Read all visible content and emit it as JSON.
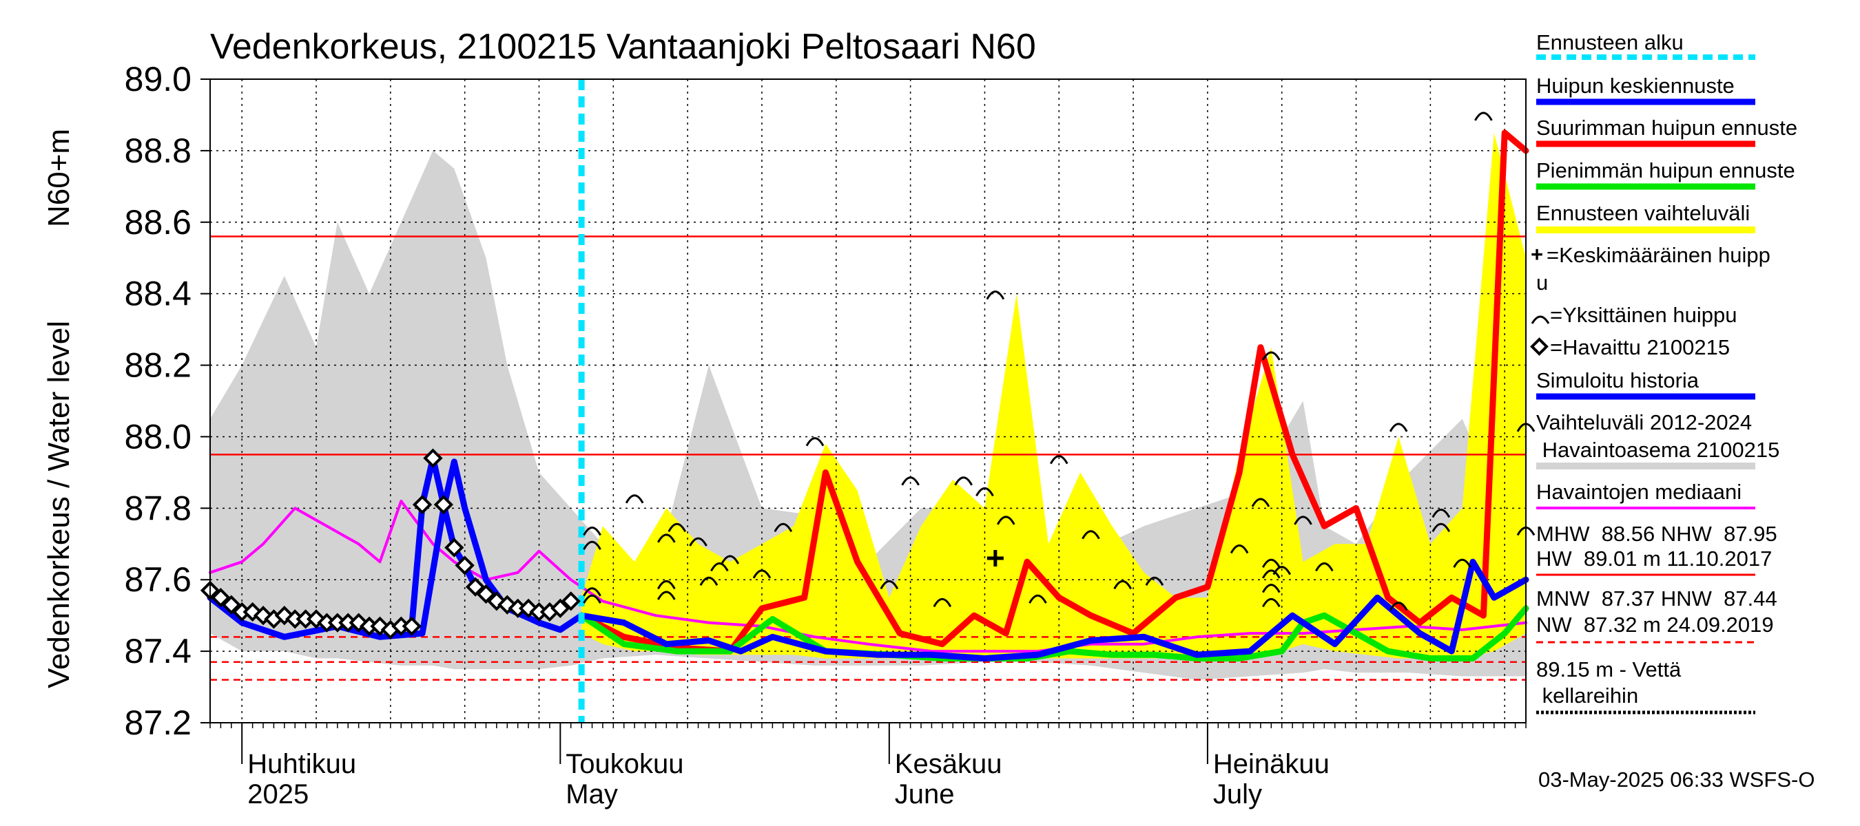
{
  "title": "Vedenkorkeus, 2100215 Vantaanjoki Peltosaari N60",
  "y_label_top": "N60+m",
  "y_label": "Vedenkorkeus / Water level",
  "footer": "03-May-2025 06:33 WSFS-O",
  "months": [
    {
      "fi": "Huhtikuu",
      "en": "2025",
      "date": "2025-04-01"
    },
    {
      "fi": "Toukokuu",
      "en": "May",
      "date": "2025-05-01"
    },
    {
      "fi": "Kesäkuu",
      "en": "June",
      "date": "2025-06-01"
    },
    {
      "fi": "Heinäkuu",
      "en": "July",
      "date": "2025-07-01"
    }
  ],
  "legend": {
    "forecast_start": "Ennusteen alku",
    "peak_mean": "Huipun keskiennuste",
    "peak_max": "Suurimman huipun ennuste",
    "peak_min": "Pienimmän huipun ennuste",
    "range": "Ennusteen vaihteluväli",
    "mean_peak_1": "=Keskimääräinen huipp",
    "mean_peak_2": "u",
    "single_peak": "=Yksittäinen huippu",
    "observed": "=Havaittu 2100215",
    "sim_history": "Simuloitu historia",
    "hist_range_1": "Vaihteluväli 2012-2024",
    "hist_range_2": " Havaintoasema 2100215",
    "median": "Havaintojen mediaani",
    "stats_1": "MHW  88.56 NHW  87.95",
    "stats_2": "HW  89.01 m 11.10.2017",
    "stats_3": "MNW  87.37 HNW  87.44",
    "stats_4": "NW  87.32 m 24.09.2019",
    "cellar_1": "89.15 m - Vettä",
    "cellar_2": " kellareihin"
  },
  "colors": {
    "forecast_start": "#00e5ff",
    "peak_mean": "#0000ff",
    "peak_max": "#ff0000",
    "peak_min": "#00e600",
    "range": "#ffff00",
    "hist_range": "#d3d3d3",
    "median": "#ff00ff",
    "observed": "#000000"
  },
  "chart_data": {
    "type": "line",
    "x_start": "2025-03-29",
    "x_end": "2025-07-31",
    "ylim": [
      87.2,
      89.0
    ],
    "yticks": [
      87.2,
      87.4,
      87.6,
      87.8,
      88.0,
      88.2,
      88.4,
      88.6,
      88.8,
      89.0
    ],
    "grid": true,
    "forecast_start": "2025-05-03",
    "ref_lines_solid": [
      88.56,
      87.95
    ],
    "ref_lines_dashed": [
      87.44,
      87.37,
      87.32
    ],
    "hist_range": {
      "x": [
        "2025-03-29",
        "2025-04-01",
        "2025-04-05",
        "2025-04-08",
        "2025-04-10",
        "2025-04-13",
        "2025-04-16",
        "2025-04-19",
        "2025-04-21",
        "2025-04-24",
        "2025-04-26",
        "2025-04-29",
        "2025-05-02",
        "2025-05-05",
        "2025-05-10",
        "2025-05-15",
        "2025-05-20",
        "2025-05-25",
        "2025-05-30",
        "2025-06-04",
        "2025-06-10",
        "2025-06-15",
        "2025-06-20",
        "2025-06-25",
        "2025-06-30",
        "2025-07-05",
        "2025-07-10",
        "2025-07-12",
        "2025-07-15",
        "2025-07-20",
        "2025-07-25",
        "2025-07-31"
      ],
      "lower": [
        87.45,
        87.4,
        87.4,
        87.38,
        87.38,
        87.37,
        87.36,
        87.36,
        87.35,
        87.35,
        87.35,
        87.35,
        87.36,
        87.38,
        87.39,
        87.38,
        87.37,
        87.36,
        87.36,
        87.36,
        87.37,
        87.37,
        87.36,
        87.34,
        87.32,
        87.33,
        87.34,
        87.35,
        87.34,
        87.34,
        87.33,
        87.33
      ],
      "upper": [
        88.05,
        88.2,
        88.45,
        88.25,
        88.6,
        88.4,
        88.6,
        88.8,
        88.75,
        88.5,
        88.2,
        87.9,
        87.8,
        87.7,
        87.62,
        88.2,
        87.8,
        87.78,
        87.65,
        87.8,
        87.8,
        87.7,
        87.68,
        87.75,
        87.8,
        87.85,
        88.1,
        87.75,
        87.7,
        87.9,
        88.05,
        87.65
      ]
    },
    "forecast_range": {
      "x": [
        "2025-05-03",
        "2025-05-05",
        "2025-05-08",
        "2025-05-11",
        "2025-05-14",
        "2025-05-17",
        "2025-05-20",
        "2025-05-23",
        "2025-05-26",
        "2025-05-29",
        "2025-06-01",
        "2025-06-04",
        "2025-06-07",
        "2025-06-10",
        "2025-06-13",
        "2025-06-16",
        "2025-06-19",
        "2025-06-22",
        "2025-06-25",
        "2025-06-28",
        "2025-07-01",
        "2025-07-04",
        "2025-07-07",
        "2025-07-10",
        "2025-07-13",
        "2025-07-16",
        "2025-07-19",
        "2025-07-22",
        "2025-07-25",
        "2025-07-28",
        "2025-07-31"
      ],
      "lower": [
        87.45,
        87.42,
        87.4,
        87.4,
        87.39,
        87.39,
        87.39,
        87.39,
        87.38,
        87.38,
        87.38,
        87.38,
        87.38,
        87.38,
        87.38,
        87.38,
        87.38,
        87.38,
        87.38,
        87.38,
        87.38,
        87.38,
        87.39,
        87.42,
        87.4,
        87.39,
        87.38,
        87.38,
        87.38,
        87.4,
        87.45
      ],
      "upper": [
        87.55,
        87.75,
        87.65,
        87.8,
        87.7,
        87.65,
        87.7,
        87.75,
        87.98,
        87.85,
        87.55,
        87.75,
        87.88,
        87.8,
        88.4,
        87.7,
        87.9,
        87.75,
        87.62,
        87.55,
        87.55,
        87.95,
        88.25,
        87.65,
        87.7,
        87.7,
        88.0,
        87.7,
        87.8,
        88.85,
        88.5
      ]
    },
    "series": [
      {
        "key": "median",
        "x": [
          "2025-03-29",
          "2025-04-01",
          "2025-04-03",
          "2025-04-06",
          "2025-04-09",
          "2025-04-12",
          "2025-04-14",
          "2025-04-16",
          "2025-04-19",
          "2025-04-21",
          "2025-04-24",
          "2025-04-27",
          "2025-04-29",
          "2025-05-02",
          "2025-05-05",
          "2025-05-10",
          "2025-05-15",
          "2025-05-20",
          "2025-05-25",
          "2025-05-30",
          "2025-06-05",
          "2025-06-10",
          "2025-06-15",
          "2025-06-20",
          "2025-06-25",
          "2025-06-30",
          "2025-07-05",
          "2025-07-10",
          "2025-07-15",
          "2025-07-20",
          "2025-07-25",
          "2025-07-31"
        ],
        "y": [
          87.62,
          87.65,
          87.7,
          87.8,
          87.75,
          87.7,
          87.65,
          87.82,
          87.7,
          87.65,
          87.6,
          87.62,
          87.68,
          87.6,
          87.54,
          87.5,
          87.48,
          87.47,
          87.44,
          87.42,
          87.4,
          87.4,
          87.4,
          87.42,
          87.42,
          87.44,
          87.45,
          87.45,
          87.46,
          87.47,
          87.46,
          87.48
        ]
      },
      {
        "key": "peak_max",
        "x": [
          "2025-05-03",
          "2025-05-07",
          "2025-05-12",
          "2025-05-17",
          "2025-05-20",
          "2025-05-24",
          "2025-05-26",
          "2025-05-29",
          "2025-06-02",
          "2025-06-06",
          "2025-06-09",
          "2025-06-12",
          "2025-06-14",
          "2025-06-17",
          "2025-06-20",
          "2025-06-24",
          "2025-06-28",
          "2025-07-01",
          "2025-07-04",
          "2025-07-06",
          "2025-07-09",
          "2025-07-12",
          "2025-07-15",
          "2025-07-18",
          "2025-07-21",
          "2025-07-24",
          "2025-07-27",
          "2025-07-29",
          "2025-07-31"
        ],
        "y": [
          87.5,
          87.44,
          87.41,
          87.4,
          87.52,
          87.55,
          87.9,
          87.65,
          87.45,
          87.42,
          87.5,
          87.45,
          87.65,
          87.55,
          87.5,
          87.45,
          87.55,
          87.58,
          87.9,
          88.25,
          87.95,
          87.75,
          87.8,
          87.55,
          87.48,
          87.55,
          87.5,
          88.85,
          88.8
        ]
      },
      {
        "key": "peak_min",
        "x": [
          "2025-05-03",
          "2025-05-07",
          "2025-05-12",
          "2025-05-17",
          "2025-05-21",
          "2025-05-26",
          "2025-06-01",
          "2025-06-06",
          "2025-06-10",
          "2025-06-14",
          "2025-06-18",
          "2025-06-22",
          "2025-06-26",
          "2025-06-30",
          "2025-07-04",
          "2025-07-08",
          "2025-07-10",
          "2025-07-12",
          "2025-07-15",
          "2025-07-18",
          "2025-07-22",
          "2025-07-26",
          "2025-07-29",
          "2025-07-31"
        ],
        "y": [
          87.5,
          87.42,
          87.4,
          87.4,
          87.49,
          87.4,
          87.39,
          87.38,
          87.38,
          87.38,
          87.4,
          87.39,
          87.39,
          87.38,
          87.38,
          87.4,
          87.48,
          87.5,
          87.45,
          87.4,
          87.38,
          87.38,
          87.45,
          87.52
        ]
      },
      {
        "key": "peak_mean",
        "x": [
          "2025-03-29",
          "2025-04-01",
          "2025-04-05",
          "2025-04-10",
          "2025-04-14",
          "2025-04-18",
          "2025-04-20",
          "2025-04-21",
          "2025-04-22",
          "2025-04-24",
          "2025-04-26",
          "2025-04-29",
          "2025-05-01",
          "2025-05-03",
          "2025-05-07",
          "2025-05-11",
          "2025-05-15",
          "2025-05-18",
          "2025-05-21",
          "2025-05-26",
          "2025-05-31",
          "2025-06-05",
          "2025-06-10",
          "2025-06-15",
          "2025-06-20",
          "2025-06-25",
          "2025-06-30",
          "2025-07-05",
          "2025-07-09",
          "2025-07-13",
          "2025-07-17",
          "2025-07-21",
          "2025-07-24",
          "2025-07-26",
          "2025-07-28",
          "2025-07-31"
        ],
        "y": [
          87.55,
          87.48,
          87.44,
          87.47,
          87.44,
          87.45,
          87.8,
          87.93,
          87.8,
          87.6,
          87.52,
          87.48,
          87.46,
          87.5,
          87.48,
          87.42,
          87.43,
          87.4,
          87.44,
          87.4,
          87.39,
          87.39,
          87.38,
          87.39,
          87.43,
          87.44,
          87.39,
          87.4,
          87.5,
          87.42,
          87.55,
          87.45,
          87.4,
          87.65,
          87.55,
          87.6
        ]
      }
    ],
    "observed": {
      "x": [
        "2025-03-29",
        "2025-03-30",
        "2025-03-31",
        "2025-04-01",
        "2025-04-02",
        "2025-04-03",
        "2025-04-04",
        "2025-04-05",
        "2025-04-06",
        "2025-04-07",
        "2025-04-08",
        "2025-04-09",
        "2025-04-10",
        "2025-04-11",
        "2025-04-12",
        "2025-04-13",
        "2025-04-14",
        "2025-04-15",
        "2025-04-16",
        "2025-04-17",
        "2025-04-18",
        "2025-04-19",
        "2025-04-20",
        "2025-04-21",
        "2025-04-22",
        "2025-04-23",
        "2025-04-24",
        "2025-04-25",
        "2025-04-26",
        "2025-04-27",
        "2025-04-28",
        "2025-04-29",
        "2025-04-30",
        "2025-05-01",
        "2025-05-02"
      ],
      "y": [
        87.57,
        87.55,
        87.53,
        87.51,
        87.51,
        87.5,
        87.49,
        87.5,
        87.49,
        87.49,
        87.49,
        87.48,
        87.48,
        87.48,
        87.48,
        87.47,
        87.47,
        87.46,
        87.47,
        87.47,
        87.81,
        87.94,
        87.81,
        87.69,
        87.64,
        87.58,
        87.56,
        87.54,
        87.53,
        87.52,
        87.52,
        87.51,
        87.51,
        87.52,
        87.54
      ]
    },
    "single_peaks": [
      {
        "x": "2025-05-04",
        "y": 87.74
      },
      {
        "x": "2025-05-04",
        "y": 87.7
      },
      {
        "x": "2025-05-04",
        "y": 87.57
      },
      {
        "x": "2025-05-04",
        "y": 87.55
      },
      {
        "x": "2025-05-08",
        "y": 87.83
      },
      {
        "x": "2025-05-11",
        "y": 87.72
      },
      {
        "x": "2025-05-11",
        "y": 87.59
      },
      {
        "x": "2025-05-11",
        "y": 87.56
      },
      {
        "x": "2025-05-12",
        "y": 87.75
      },
      {
        "x": "2025-05-14",
        "y": 87.71
      },
      {
        "x": "2025-05-15",
        "y": 87.6
      },
      {
        "x": "2025-05-16",
        "y": 87.64
      },
      {
        "x": "2025-05-17",
        "y": 87.66
      },
      {
        "x": "2025-05-20",
        "y": 87.62
      },
      {
        "x": "2025-05-22",
        "y": 87.75
      },
      {
        "x": "2025-05-25",
        "y": 87.99
      },
      {
        "x": "2025-06-01",
        "y": 87.59
      },
      {
        "x": "2025-06-03",
        "y": 87.88
      },
      {
        "x": "2025-06-06",
        "y": 87.54
      },
      {
        "x": "2025-06-08",
        "y": 87.88
      },
      {
        "x": "2025-06-10",
        "y": 87.85
      },
      {
        "x": "2025-06-11",
        "y": 88.4
      },
      {
        "x": "2025-06-12",
        "y": 87.77
      },
      {
        "x": "2025-06-15",
        "y": 87.55
      },
      {
        "x": "2025-06-17",
        "y": 87.94
      },
      {
        "x": "2025-06-20",
        "y": 87.73
      },
      {
        "x": "2025-06-23",
        "y": 87.59
      },
      {
        "x": "2025-06-26",
        "y": 87.6
      },
      {
        "x": "2025-07-04",
        "y": 87.69
      },
      {
        "x": "2025-07-06",
        "y": 87.82
      },
      {
        "x": "2025-07-07",
        "y": 88.23
      },
      {
        "x": "2025-07-07",
        "y": 87.65
      },
      {
        "x": "2025-07-07",
        "y": 87.62
      },
      {
        "x": "2025-07-07",
        "y": 87.58
      },
      {
        "x": "2025-07-07",
        "y": 87.54
      },
      {
        "x": "2025-07-08",
        "y": 87.63
      },
      {
        "x": "2025-07-10",
        "y": 87.77
      },
      {
        "x": "2025-07-12",
        "y": 87.64
      },
      {
        "x": "2025-07-19",
        "y": 88.03
      },
      {
        "x": "2025-07-19",
        "y": 87.53
      },
      {
        "x": "2025-07-23",
        "y": 87.79
      },
      {
        "x": "2025-07-23",
        "y": 87.75
      },
      {
        "x": "2025-07-25",
        "y": 87.65
      },
      {
        "x": "2025-07-27",
        "y": 88.9
      },
      {
        "x": "2025-07-31",
        "y": 88.03
      },
      {
        "x": "2025-07-31",
        "y": 87.74
      }
    ],
    "mean_peak": {
      "x": "2025-06-11",
      "y": 87.66
    }
  }
}
